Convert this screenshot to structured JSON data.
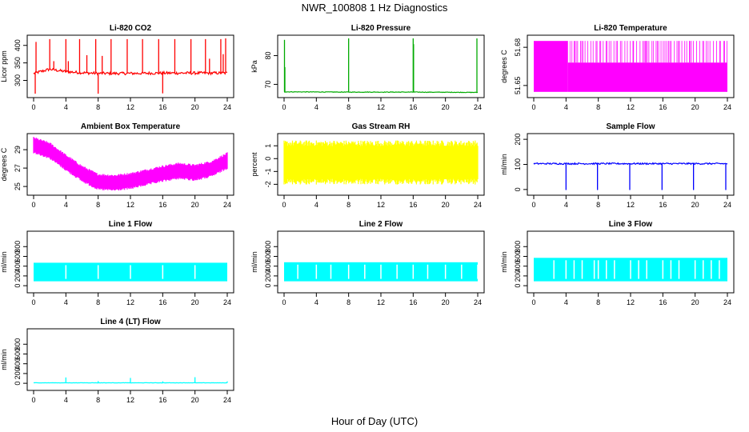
{
  "figure": {
    "title": "NWR_100808  1 Hz Diagnostics",
    "xlabel": "Hour of Day (UTC)"
  },
  "chart_data": [
    {
      "type": "line",
      "title": "Li-820 CO2",
      "ylabel": "Licor ppm",
      "color": "#ff0000",
      "xlim": [
        0,
        24
      ],
      "ylim": [
        260,
        420
      ],
      "xticks": [
        0,
        4,
        8,
        12,
        16,
        20,
        24
      ],
      "yticks": [
        300,
        350,
        400
      ],
      "baseline": [
        [
          0,
          320
        ],
        [
          2,
          332
        ],
        [
          4,
          325
        ],
        [
          6,
          322
        ],
        [
          8,
          320
        ],
        [
          12,
          320
        ],
        [
          16,
          321
        ],
        [
          20,
          321
        ],
        [
          24,
          321
        ]
      ],
      "noise": 4,
      "spikes": [
        [
          0.3,
          410
        ],
        [
          0.2,
          262
        ],
        [
          2.0,
          418
        ],
        [
          2.5,
          355
        ],
        [
          4.0,
          418
        ],
        [
          4.3,
          355
        ],
        [
          5.7,
          418
        ],
        [
          6.6,
          372
        ],
        [
          7.7,
          418
        ],
        [
          8.0,
          262
        ],
        [
          8.5,
          370
        ],
        [
          9.6,
          418
        ],
        [
          11.6,
          418
        ],
        [
          13.5,
          418
        ],
        [
          15.5,
          418
        ],
        [
          16.0,
          263
        ],
        [
          17.5,
          418
        ],
        [
          19.5,
          418
        ],
        [
          21.3,
          418
        ],
        [
          21.8,
          362
        ],
        [
          23.2,
          418
        ],
        [
          23.5,
          375
        ],
        [
          23.8,
          420
        ]
      ]
    },
    {
      "type": "line",
      "title": "Li-820 Pressure",
      "ylabel": "kPa",
      "color": "#00aa00",
      "xlim": [
        0,
        24
      ],
      "ylim": [
        66.5,
        86
      ],
      "xticks": [
        0,
        4,
        8,
        12,
        16,
        20,
        24
      ],
      "yticks": [
        70,
        80
      ],
      "baseline": [
        [
          0,
          67.4
        ],
        [
          8,
          67.3
        ],
        [
          16,
          67.3
        ],
        [
          24,
          67.2
        ]
      ],
      "noise": 0.1,
      "spikes": [
        [
          0.05,
          85.5
        ],
        [
          0.1,
          76
        ],
        [
          8.0,
          86
        ],
        [
          16.0,
          86
        ],
        [
          16.05,
          84
        ],
        [
          23.9,
          86
        ]
      ]
    },
    {
      "type": "band",
      "title": "Li-820 Temperature",
      "ylabel": "degrees C",
      "color": "#ff00ff",
      "xlim": [
        0,
        24
      ],
      "ylim": [
        51.643,
        51.687
      ],
      "xticks": [
        0,
        4,
        8,
        12,
        16,
        20,
        24
      ],
      "yticks": [
        51.65,
        51.68
      ],
      "yticklabels": [
        "51.65",
        "51.68"
      ],
      "band": [
        51.645,
        51.685
      ],
      "lower_band_top": 51.668,
      "full_until": 4.2
    },
    {
      "type": "band_curve",
      "title": "Ambient Box Temperature",
      "ylabel": "degrees C",
      "color": "#ff00ff",
      "xlim": [
        0,
        24
      ],
      "ylim": [
        24.4,
        30.4
      ],
      "xticks": [
        0,
        4,
        8,
        12,
        16,
        20,
        24
      ],
      "yticks": [
        25,
        27,
        29
      ],
      "center": [
        [
          0,
          29.5
        ],
        [
          2,
          28.9
        ],
        [
          4,
          27.6
        ],
        [
          6,
          26.4
        ],
        [
          8,
          25.5
        ],
        [
          10,
          25.4
        ],
        [
          12,
          25.6
        ],
        [
          14,
          26.0
        ],
        [
          16,
          26.4
        ],
        [
          18,
          26.7
        ],
        [
          20,
          26.5
        ],
        [
          22,
          26.9
        ],
        [
          24,
          27.8
        ]
      ],
      "halfwidth": 0.8
    },
    {
      "type": "band_curve",
      "title": "Gas Stream RH",
      "ylabel": "percent",
      "color": "#ffff00",
      "xlim": [
        0,
        24
      ],
      "ylim": [
        -2.6,
        1.7
      ],
      "xticks": [
        0,
        4,
        8,
        12,
        16,
        20,
        24
      ],
      "yticks": [
        -2,
        -1,
        0,
        1
      ],
      "center": [
        [
          0,
          -0.3
        ],
        [
          24,
          -0.3
        ]
      ],
      "halfwidth": 1.5
    },
    {
      "type": "line",
      "title": "Sample Flow",
      "ylabel": "ml/min",
      "color": "#0000ff",
      "xlim": [
        0,
        24
      ],
      "ylim": [
        -10,
        210
      ],
      "xticks": [
        0,
        4,
        8,
        12,
        16,
        20,
        24
      ],
      "yticks": [
        0,
        100,
        200
      ],
      "baseline": [
        [
          0,
          103
        ],
        [
          24,
          103
        ]
      ],
      "noise": 3,
      "spikes": [
        [
          4.0,
          -2
        ],
        [
          7.9,
          -2
        ],
        [
          11.9,
          -2
        ],
        [
          15.9,
          -2
        ],
        [
          19.8,
          -2
        ],
        [
          23.8,
          -2
        ]
      ]
    },
    {
      "type": "band_gaps",
      "title": "Line 1 Flow",
      "ylabel": "ml/min",
      "color": "#00ffff",
      "xlim": [
        0,
        24
      ],
      "ylim": [
        -80,
        1050
      ],
      "xticks": [
        0,
        4,
        8,
        12,
        16,
        20,
        24
      ],
      "yticks": [
        0,
        200,
        400,
        600,
        800
      ],
      "band": [
        90,
        470
      ],
      "gaps": [
        4,
        8,
        12,
        16,
        20
      ]
    },
    {
      "type": "band_gaps",
      "title": "Line 2 Flow",
      "ylabel": "ml/min",
      "color": "#00ffff",
      "xlim": [
        0,
        24
      ],
      "ylim": [
        -80,
        1050
      ],
      "xticks": [
        0,
        4,
        8,
        12,
        16,
        20,
        24
      ],
      "yticks": [
        0,
        200,
        400,
        600,
        800
      ],
      "band": [
        90,
        480
      ],
      "gaps": [
        1.7,
        4,
        5.8,
        8,
        10,
        12,
        14,
        16,
        17.8,
        20,
        22,
        24
      ]
    },
    {
      "type": "band_gaps",
      "title": "Line 3 Flow",
      "ylabel": "ml/min",
      "color": "#00ffff",
      "xlim": [
        0,
        24
      ],
      "ylim": [
        -80,
        1050
      ],
      "xticks": [
        0,
        4,
        8,
        12,
        16,
        20,
        24
      ],
      "yticks": [
        0,
        200,
        400,
        600,
        800
      ],
      "band": [
        90,
        570
      ],
      "gaps": [
        2.5,
        4,
        5,
        6,
        7.5,
        8,
        9,
        10,
        12,
        13,
        14,
        16,
        17,
        18,
        20,
        21,
        22,
        23
      ]
    },
    {
      "type": "line",
      "title": "Line 4 (LT) Flow",
      "ylabel": "ml/min",
      "color": "#00ffff",
      "xlim": [
        0,
        24
      ],
      "ylim": [
        -80,
        1050
      ],
      "xticks": [
        0,
        4,
        8,
        12,
        16,
        20,
        24
      ],
      "yticks": [
        0,
        200,
        400,
        600,
        800
      ],
      "baseline": [
        [
          0,
          10
        ],
        [
          24,
          10
        ]
      ],
      "noise": 2,
      "spikes": [
        [
          4.0,
          120
        ],
        [
          8.0,
          45
        ],
        [
          12.0,
          110
        ],
        [
          16.0,
          40
        ],
        [
          20.0,
          125
        ],
        [
          24.0,
          40
        ]
      ]
    }
  ]
}
